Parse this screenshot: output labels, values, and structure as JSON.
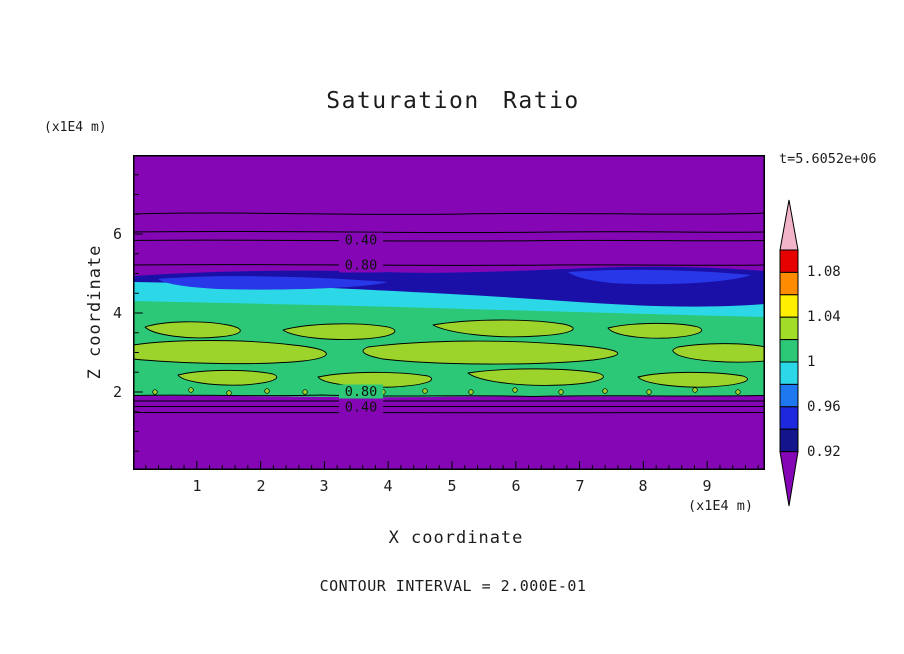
{
  "title": "Saturation Ratio",
  "annotations": {
    "time_label": "t=5.6052e+06",
    "contour_interval_note": "CONTOUR INTERVAL = 2.000E-01",
    "y_axis_unit": "(x1E4 m)",
    "x_axis_unit": "(x1E4 m)"
  },
  "axes": {
    "x_title": "X coordinate",
    "y_title": "Z coordinate",
    "x_tick_labels": [
      "1",
      "2",
      "3",
      "4",
      "5",
      "6",
      "7",
      "8",
      "9"
    ],
    "y_tick_labels": [
      "6",
      "4",
      "2"
    ]
  },
  "contour_labels": {
    "upper_first": "0.40",
    "upper_second": "0.80",
    "lower_first": "0.80",
    "lower_second": "0.40"
  },
  "chart_data": {
    "type": "heatmap",
    "subtype": "filled contour plot",
    "title": "Saturation Ratio",
    "xlabel": "X coordinate (x1E4 m)",
    "ylabel": "Z coordinate (x1E4 m)",
    "x_range": [
      0,
      9.9
    ],
    "y_range": [
      0,
      8
    ],
    "time_annotation": "t=5.6052e+06",
    "line_contour_interval": 0.2,
    "line_contour_labels": [
      "0.40",
      "0.80",
      "0.80",
      "0.40"
    ],
    "colorbar": {
      "labels": [
        "1.08",
        "1.04",
        "1",
        "0.96",
        "0.92"
      ],
      "band_edges": [
        1.1,
        1.08,
        1.06,
        1.04,
        1.02,
        1.0,
        0.98,
        0.96,
        0.94,
        0.92
      ],
      "band_colors": [
        "#e60000",
        "#ff8c00",
        "#ffef00",
        "#a0dc28",
        "#2cc878",
        "#2cd8e8",
        "#1e78f0",
        "#1e28dc",
        "#14148c"
      ],
      "over_color": "#f2b4c8",
      "under_color": "#8406b4"
    },
    "colors": {
      "purple": "#8406b4",
      "navy": "#1a10a8",
      "blue": "#2838e8",
      "cyan": "#2cd8e8",
      "green": "#2cc878",
      "yellow_green": "#9cd42c"
    },
    "field_profile_top_to_bottom": [
      {
        "band": "undersaturated purple region",
        "saturation": "< 0.2",
        "z_extent": "z ≈ 5.6 – 8"
      },
      {
        "band": "line contours 0.20 / 0.40 / 0.60 / 0.80",
        "z_extent": "z ≈ 5.2 – 5.9"
      },
      {
        "band": "dark blue layer",
        "saturation": "0.90 – 0.94",
        "z_extent": "z ≈ 4.7 – 5.2"
      },
      {
        "band": "cyan layer",
        "saturation": "0.94 – 0.98",
        "z_extent": "z ≈ 4.4 – 4.8"
      },
      {
        "band": "green layer with yellow-green supersaturated patches",
        "saturation": "0.98 – 1.06",
        "z_extent": "z ≈ 2.1 – 4.4"
      },
      {
        "band": "line contours 0.80 / 0.60 / 0.40",
        "z_extent": "z ≈ 1.8 – 2.1"
      },
      {
        "band": "undersaturated purple region",
        "saturation": "< 0.2",
        "z_extent": "z ≈ 0 – 1.8"
      }
    ]
  }
}
